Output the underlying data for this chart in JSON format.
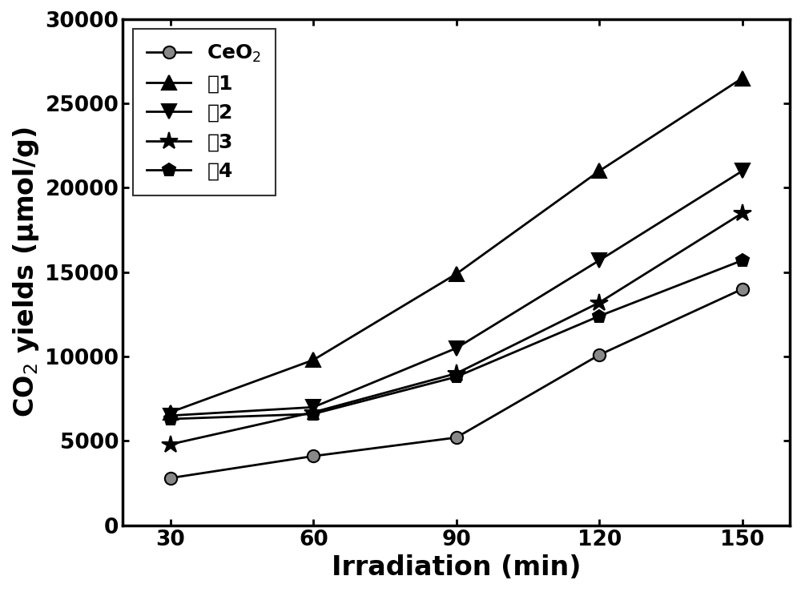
{
  "x": [
    30,
    60,
    90,
    120,
    150
  ],
  "series": [
    {
      "label": "CeO$_2$",
      "values": [
        2800,
        4100,
        5200,
        10100,
        14000
      ],
      "marker": "o",
      "markersize": 11,
      "color": "#000000",
      "markerfacecolor": "#888888",
      "markeredgecolor": "#000000",
      "linewidth": 2.0
    },
    {
      "label": "你1",
      "values": [
        6700,
        9800,
        14900,
        21000,
        26500
      ],
      "marker": "^",
      "markersize": 13,
      "color": "#000000",
      "markerfacecolor": "#000000",
      "markeredgecolor": "#000000",
      "linewidth": 2.0
    },
    {
      "label": "你2",
      "values": [
        6500,
        7000,
        10500,
        15700,
        21000
      ],
      "marker": "v",
      "markersize": 13,
      "color": "#000000",
      "markerfacecolor": "#000000",
      "markeredgecolor": "#000000",
      "linewidth": 2.0
    },
    {
      "label": "你3",
      "values": [
        4800,
        6700,
        9000,
        13200,
        18500
      ],
      "marker": "*",
      "markersize": 16,
      "color": "#000000",
      "markerfacecolor": "#000000",
      "markeredgecolor": "#000000",
      "linewidth": 2.0
    },
    {
      "label": "你4",
      "values": [
        6300,
        6600,
        8800,
        12400,
        15700
      ],
      "marker": "p",
      "markersize": 12,
      "color": "#000000",
      "markerfacecolor": "#000000",
      "markeredgecolor": "#000000",
      "linewidth": 2.0
    }
  ],
  "xlabel": "Irradiation (min)",
  "ylabel": "CO$_2$ yields (μmol/g)",
  "xlim": [
    20,
    160
  ],
  "ylim": [
    0,
    30000
  ],
  "yticks": [
    0,
    5000,
    10000,
    15000,
    20000,
    25000,
    30000
  ],
  "xticks": [
    30,
    60,
    90,
    120,
    150
  ],
  "axis_label_fontsize": 24,
  "tick_fontsize": 19,
  "legend_fontsize": 18,
  "background_color": "#ffffff",
  "linewidth_axes": 2.5
}
